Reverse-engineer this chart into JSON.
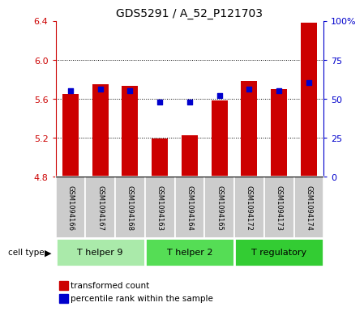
{
  "title": "GDS5291 / A_52_P121703",
  "samples": [
    "GSM1094166",
    "GSM1094167",
    "GSM1094168",
    "GSM1094163",
    "GSM1094164",
    "GSM1094165",
    "GSM1094172",
    "GSM1094173",
    "GSM1094174"
  ],
  "transformed_counts": [
    5.65,
    5.75,
    5.73,
    5.19,
    5.22,
    5.58,
    5.78,
    5.7,
    6.38
  ],
  "percentile_ranks": [
    55,
    56,
    55,
    48,
    48,
    52,
    56,
    55,
    60
  ],
  "ylim_left": [
    4.8,
    6.4
  ],
  "ylim_right": [
    0,
    100
  ],
  "yticks_left": [
    4.8,
    5.2,
    5.6,
    6.0,
    6.4
  ],
  "yticks_right": [
    0,
    25,
    50,
    75,
    100
  ],
  "ytick_labels_right": [
    "0",
    "25",
    "50",
    "75",
    "100%"
  ],
  "grid_yticks": [
    5.2,
    5.6,
    6.0
  ],
  "bar_color": "#CC0000",
  "dot_color": "#0000CC",
  "bar_width": 0.55,
  "cell_types": [
    {
      "label": "T helper 9",
      "samples": [
        0,
        1,
        2
      ],
      "color": "#AAEAAA"
    },
    {
      "label": "T helper 2",
      "samples": [
        3,
        4,
        5
      ],
      "color": "#55DD55"
    },
    {
      "label": "T regulatory",
      "samples": [
        6,
        7,
        8
      ],
      "color": "#33CC33"
    }
  ],
  "legend_items": [
    {
      "label": "transformed count",
      "color": "#CC0000"
    },
    {
      "label": "percentile rank within the sample",
      "color": "#0000CC"
    }
  ],
  "tick_color_left": "#CC0000",
  "tick_color_right": "#0000CC",
  "sample_bg_color": "#CCCCCC"
}
